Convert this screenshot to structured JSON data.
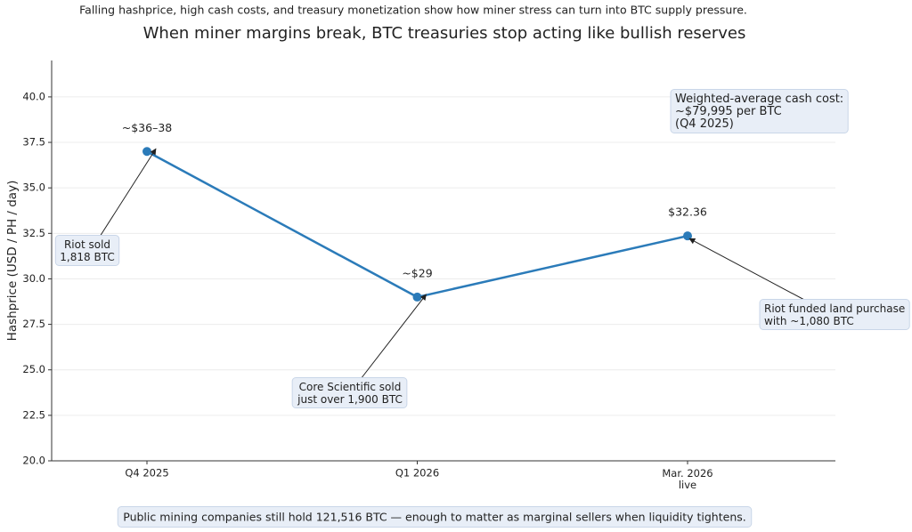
{
  "chart_data": {
    "type": "line",
    "subtitle": "Falling hashprice, high cash costs, and treasury monetization show how miner stress can turn into BTC supply pressure.",
    "title": "When miner margins break, BTC treasuries stop acting like bullish reserves",
    "y_label": "Hashprice (USD / PH / day)",
    "categories": [
      "Q4 2025",
      "Q1 2026",
      "Mar. 2026\nlive"
    ],
    "series": [
      {
        "name": "Hashprice",
        "color": "#2b7bb9",
        "values": [
          37,
          29,
          32.36
        ],
        "value_labels": [
          "~$36–38",
          "~$29",
          "$32.36"
        ]
      }
    ],
    "ylim": [
      20,
      42
    ],
    "yticks": [
      {
        "value": 20,
        "label": "20.0"
      },
      {
        "value": 22.5,
        "label": "22.5"
      },
      {
        "value": 25,
        "label": "25.0"
      },
      {
        "value": 27.5,
        "label": "27.5"
      },
      {
        "value": 30,
        "label": "30.0"
      },
      {
        "value": 32.5,
        "label": "32.5"
      },
      {
        "value": 35,
        "label": "35.0"
      },
      {
        "value": 37.5,
        "label": "37.5"
      },
      {
        "value": 40,
        "label": "40.0"
      }
    ],
    "grid": true,
    "annotations": [
      "Riot sold\n1,818 BTC",
      "Core Scientific sold\njust over 1,900 BTC",
      "Riot funded land purchase\nwith ~1,080 BTC",
      "Weighted-average cash cost:\n~$79,995 per BTC\n(Q4 2025)"
    ],
    "footer": "Public mining companies still hold 121,516 BTC — enough to matter as marginal sellers when liquidity tightens."
  }
}
